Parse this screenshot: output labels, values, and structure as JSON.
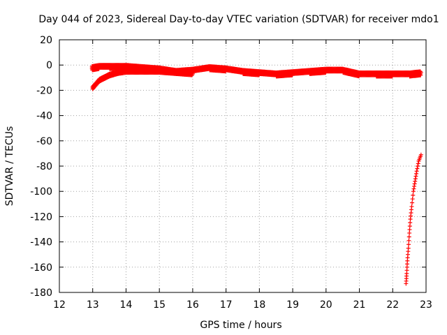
{
  "chart_data": {
    "type": "scatter",
    "title": "Day 044 of 2023, Sidereal Day-to-day VTEC variation (SDTVAR) for receiver mdo1",
    "xlabel": "GPS time / hours",
    "ylabel": "SDTVAR / TECUs",
    "xlim": [
      12,
      23
    ],
    "ylim": [
      -180,
      20
    ],
    "x_ticks": [
      "12",
      "13",
      "14",
      "15",
      "16",
      "17",
      "18",
      "19",
      "20",
      "21",
      "22",
      "23"
    ],
    "y_ticks": [
      "20",
      "0",
      "-20",
      "-40",
      "-60",
      "-80",
      "-100",
      "-120",
      "-140",
      "-160",
      "-180"
    ],
    "grid": true,
    "marker": "+",
    "series_color": "#ff0000",
    "series": [
      {
        "name": "upper band",
        "x": [
          12.98,
          13.2,
          13.5,
          14.0,
          14.5,
          15.0,
          15.5,
          16.0,
          16.5,
          17.0,
          17.5,
          18.0,
          18.5,
          19.0,
          19.5,
          20.0,
          20.5,
          21.0,
          21.5,
          22.0,
          22.5,
          22.85
        ],
        "y": [
          -2,
          -1,
          -1,
          -1,
          -2,
          -3,
          -5,
          -4,
          -2,
          -3,
          -5,
          -6,
          -7,
          -6,
          -5,
          -4,
          -4,
          -7,
          -7,
          -7,
          -7,
          -6
        ]
      },
      {
        "name": "lower band",
        "x": [
          13.0,
          13.1,
          13.2,
          13.35,
          13.5,
          13.75,
          14.0,
          14.5,
          15.0,
          15.5,
          16.0
        ],
        "y": [
          -18,
          -15,
          -12,
          -10,
          -8,
          -6,
          -5,
          -5,
          -5,
          -6,
          -7
        ]
      },
      {
        "name": "end descent",
        "x": [
          22.4,
          22.42,
          22.44,
          22.47,
          22.5,
          22.53,
          22.57,
          22.62,
          22.67,
          22.72,
          22.78,
          22.85
        ],
        "y": [
          -173,
          -165,
          -155,
          -145,
          -133,
          -122,
          -112,
          -100,
          -92,
          -84,
          -76,
          -71
        ]
      }
    ]
  }
}
